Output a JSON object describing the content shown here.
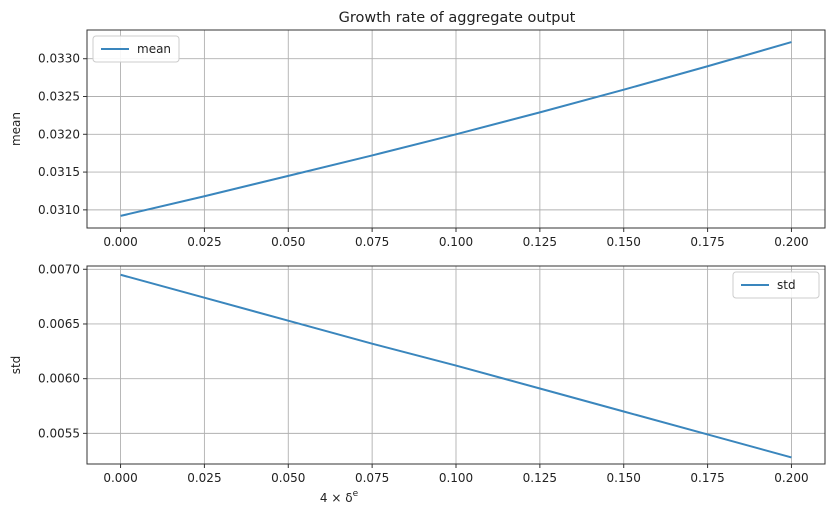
{
  "chart_data": [
    {
      "type": "line",
      "title": "Growth rate of aggregate output",
      "xlabel": "",
      "ylabel": "mean",
      "xlim": [
        -0.01,
        0.21
      ],
      "ylim": [
        0.03076,
        0.03338
      ],
      "xticks": [
        "0.000",
        "0.025",
        "0.050",
        "0.075",
        "0.100",
        "0.125",
        "0.150",
        "0.175",
        "0.200"
      ],
      "yticks": [
        "0.0310",
        "0.0315",
        "0.0320",
        "0.0325",
        "0.0330"
      ],
      "grid": true,
      "legend_position": "upper-left",
      "series": [
        {
          "name": "mean",
          "color": "#3a86bd",
          "x": [
            0.0,
            0.025,
            0.05,
            0.075,
            0.1,
            0.125,
            0.15,
            0.175,
            0.2
          ],
          "values": [
            0.03092,
            0.03118,
            0.03145,
            0.03172,
            0.032,
            0.03229,
            0.03259,
            0.0329,
            0.03322
          ]
        }
      ]
    },
    {
      "type": "line",
      "title": "",
      "xlabel": "4 × δ",
      "xlabel_superscript": "e",
      "ylabel": "std",
      "xlim": [
        -0.01,
        0.21
      ],
      "ylim": [
        0.00522,
        0.00703
      ],
      "xticks": [
        "0.000",
        "0.025",
        "0.050",
        "0.075",
        "0.100",
        "0.125",
        "0.150",
        "0.175",
        "0.200"
      ],
      "yticks": [
        "0.0055",
        "0.0060",
        "0.0065",
        "0.0070"
      ],
      "grid": true,
      "legend_position": "upper-right",
      "series": [
        {
          "name": "std",
          "color": "#3a86bd",
          "x": [
            0.0,
            0.025,
            0.05,
            0.075,
            0.1,
            0.125,
            0.15,
            0.175,
            0.2
          ],
          "values": [
            0.00695,
            0.00674,
            0.00653,
            0.00632,
            0.00612,
            0.00591,
            0.0057,
            0.00549,
            0.00528
          ]
        }
      ]
    }
  ]
}
